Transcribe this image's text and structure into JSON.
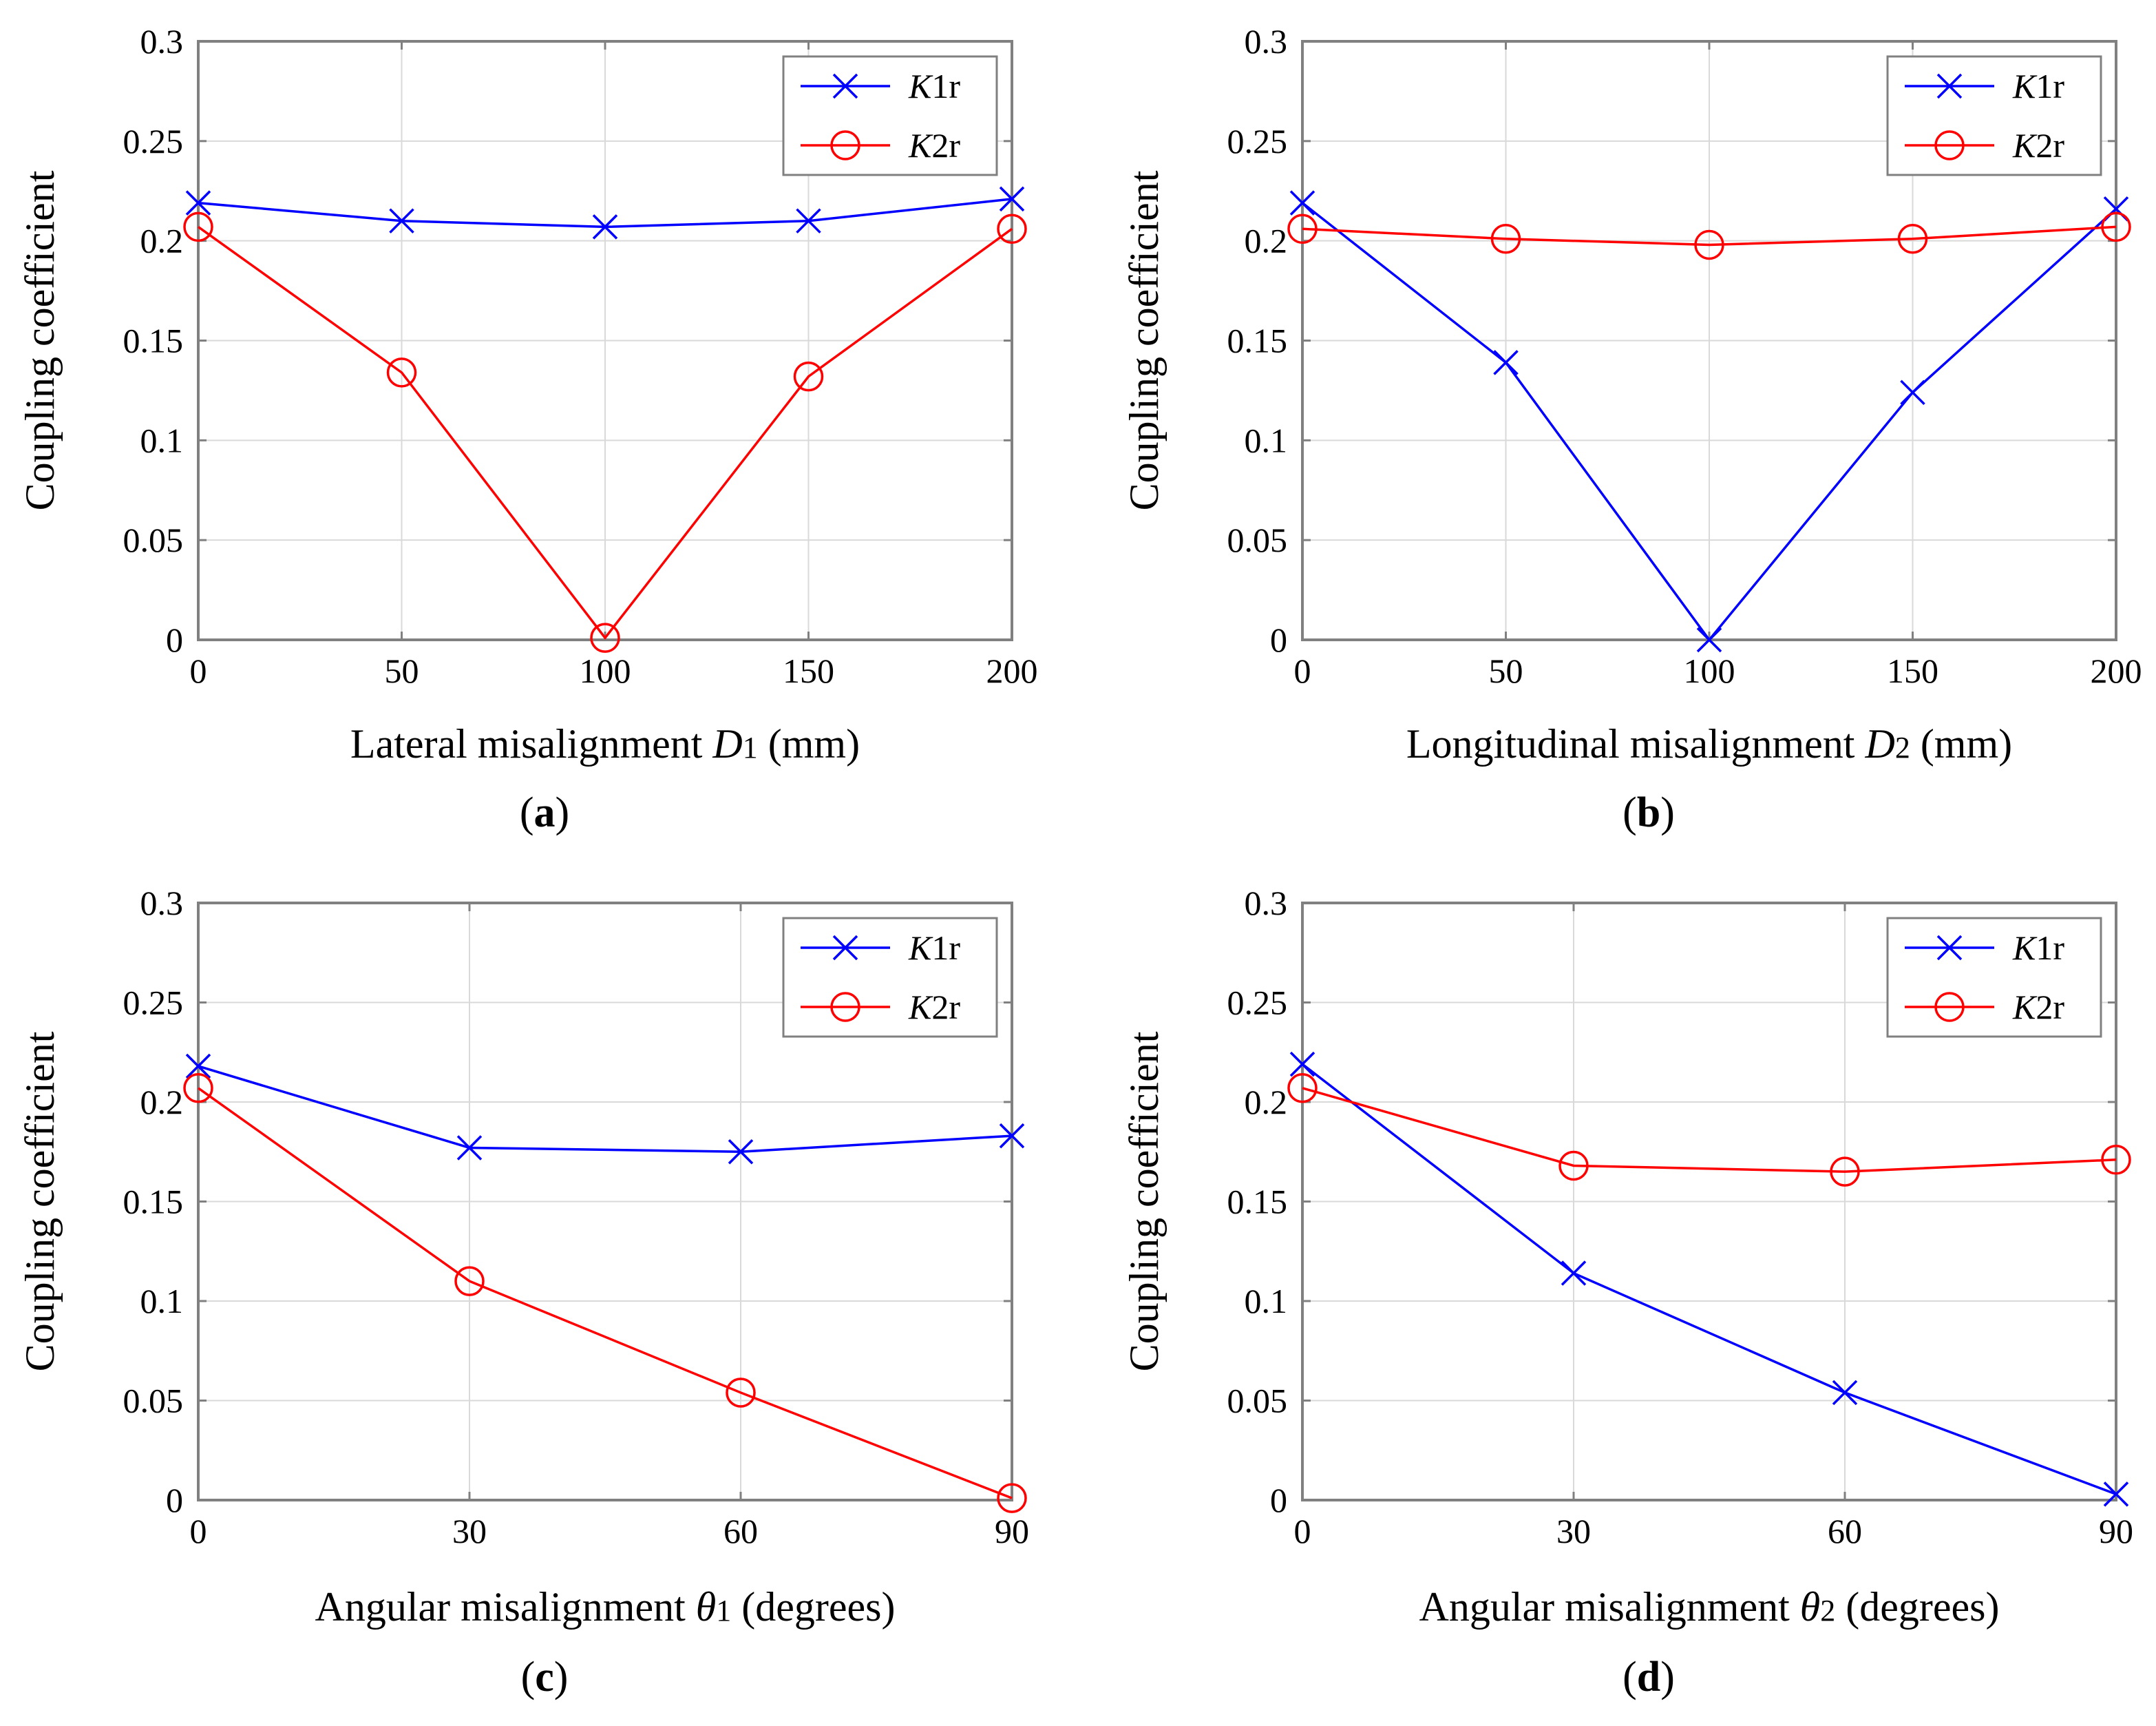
{
  "figure": {
    "colors": {
      "K1r": "#0000ff",
      "K2r": "#ff0000",
      "grid": "#d9d9d9",
      "axis": "#808080"
    }
  },
  "chart_data": [
    {
      "panel_label": "a",
      "type": "line",
      "ylabel": "Coupling coefficient",
      "xlabel": {
        "main": "Lateral misalignment ",
        "var": "D",
        "sub": "1",
        "unit": " (mm)"
      },
      "xlim": [
        0,
        200
      ],
      "ylim": [
        0,
        0.3
      ],
      "x_ticks": [
        0,
        50,
        100,
        150,
        200
      ],
      "x_tick_labels": [
        "0",
        "50",
        "100",
        "150",
        "200"
      ],
      "y_ticks": [
        0,
        0.05,
        0.1,
        0.15,
        0.2,
        0.25,
        0.3
      ],
      "y_tick_labels": [
        "0",
        "0.05",
        "0.1",
        "0.15",
        "0.2",
        "0.25",
        "0.3"
      ],
      "x": [
        0,
        50,
        100,
        150,
        200
      ],
      "grid": true,
      "legend": "top-right",
      "series": [
        {
          "name": "K1r",
          "var": "K",
          "sub": "1r",
          "marker": "x",
          "color": "#0000ff",
          "values": [
            0.219,
            0.21,
            0.207,
            0.21,
            0.221
          ]
        },
        {
          "name": "K2r",
          "var": "K",
          "sub": "2r",
          "marker": "o",
          "color": "#ff0000",
          "values": [
            0.207,
            0.134,
            0.001,
            0.132,
            0.206
          ]
        }
      ]
    },
    {
      "panel_label": "b",
      "type": "line",
      "ylabel": "Coupling coefficient",
      "xlabel": {
        "main": "Longitudinal misalignment  ",
        "var": "D",
        "sub": "2",
        "unit": " (mm)"
      },
      "xlim": [
        0,
        200
      ],
      "ylim": [
        0,
        0.3
      ],
      "x_ticks": [
        0,
        50,
        100,
        150,
        200
      ],
      "x_tick_labels": [
        "0",
        "50",
        "100",
        "150",
        "200"
      ],
      "y_ticks": [
        0,
        0.05,
        0.1,
        0.15,
        0.2,
        0.25,
        0.3
      ],
      "y_tick_labels": [
        "0",
        "0.05",
        "0.1",
        "0.15",
        "0.2",
        "0.25",
        "0.3"
      ],
      "x": [
        0,
        50,
        100,
        150,
        200
      ],
      "grid": true,
      "legend": "top-right",
      "series": [
        {
          "name": "K1r",
          "var": "K",
          "sub": "1r",
          "marker": "x",
          "color": "#0000ff",
          "values": [
            0.219,
            0.139,
            0.0,
            0.124,
            0.216
          ]
        },
        {
          "name": "K2r",
          "var": "K",
          "sub": "2r",
          "marker": "o",
          "color": "#ff0000",
          "values": [
            0.206,
            0.201,
            0.198,
            0.201,
            0.207
          ]
        }
      ]
    },
    {
      "panel_label": "c",
      "type": "line",
      "ylabel": "Coupling coefficient",
      "xlabel": {
        "main": "Angular misalignment ",
        "var": "θ",
        "sub": "1",
        "unit": " (degrees)"
      },
      "xlim": [
        0,
        90
      ],
      "ylim": [
        0,
        0.3
      ],
      "x_ticks": [
        0,
        30,
        60,
        90
      ],
      "x_tick_labels": [
        "0",
        "30",
        "60",
        "90"
      ],
      "y_ticks": [
        0,
        0.05,
        0.1,
        0.15,
        0.2,
        0.25,
        0.3
      ],
      "y_tick_labels": [
        "0",
        "0.05",
        "0.1",
        "0.15",
        "0.2",
        "0.25",
        "0.3"
      ],
      "x": [
        0,
        30,
        60,
        90
      ],
      "grid": true,
      "legend": "top-right",
      "series": [
        {
          "name": "K1r",
          "var": "K",
          "sub": "1r",
          "marker": "x",
          "color": "#0000ff",
          "values": [
            0.218,
            0.177,
            0.175,
            0.183
          ]
        },
        {
          "name": "K2r",
          "var": "K",
          "sub": "2r",
          "marker": "o",
          "color": "#ff0000",
          "values": [
            0.207,
            0.11,
            0.054,
            0.001
          ]
        }
      ]
    },
    {
      "panel_label": "d",
      "type": "line",
      "ylabel": "Coupling coefficient",
      "xlabel": {
        "main": "Angular misalignment ",
        "var": "θ",
        "sub": "2",
        "unit": " (degrees)"
      },
      "xlim": [
        0,
        90
      ],
      "ylim": [
        0,
        0.3
      ],
      "x_ticks": [
        0,
        30,
        60,
        90
      ],
      "x_tick_labels": [
        "0",
        "30",
        "60",
        "90"
      ],
      "y_ticks": [
        0,
        0.05,
        0.1,
        0.15,
        0.2,
        0.25,
        0.3
      ],
      "y_tick_labels": [
        "0",
        "0.05",
        "0.1",
        "0.15",
        "0.2",
        "0.25",
        "0.3"
      ],
      "x": [
        0,
        30,
        60,
        90
      ],
      "grid": true,
      "legend": "top-right",
      "series": [
        {
          "name": "K1r",
          "var": "K",
          "sub": "1r",
          "marker": "x",
          "color": "#0000ff",
          "values": [
            0.219,
            0.114,
            0.054,
            0.003
          ]
        },
        {
          "name": "K2r",
          "var": "K",
          "sub": "2r",
          "marker": "o",
          "color": "#ff0000",
          "values": [
            0.207,
            0.168,
            0.165,
            0.171
          ]
        }
      ]
    }
  ]
}
